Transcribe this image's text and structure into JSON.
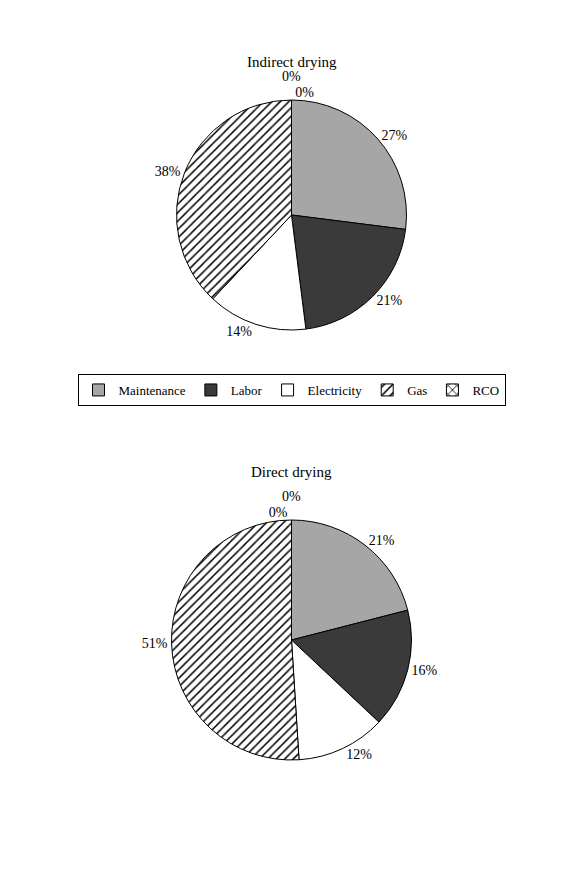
{
  "chart_data": [
    {
      "type": "pie",
      "title": "Indirect drying",
      "categories": [
        "Maintenance",
        "Labor",
        "Electricity",
        "Gas",
        "RCO"
      ],
      "values": [
        27,
        21,
        14,
        38,
        0
      ],
      "value_labels": [
        "27%",
        "21%",
        "14%",
        "38%",
        "0%"
      ],
      "colors": [
        "#a6a6a6",
        "#3a3a3a",
        "#ffffff",
        "#ffffff",
        "#ffffff"
      ],
      "data_labels": true,
      "legend": "bottom"
    },
    {
      "type": "pie",
      "title": "Direct drying",
      "categories": [
        "Maintenance",
        "Labor",
        "Electricity",
        "Gas",
        "RCO"
      ],
      "values": [
        21,
        16,
        12,
        51,
        0
      ],
      "value_labels": [
        "21%",
        "16%",
        "12%",
        "51%",
        "0%"
      ],
      "colors": [
        "#a6a6a6",
        "#3a3a3a",
        "#ffffff",
        "#ffffff",
        "#ffffff"
      ],
      "data_labels": true,
      "legend": "bottom"
    }
  ]
}
